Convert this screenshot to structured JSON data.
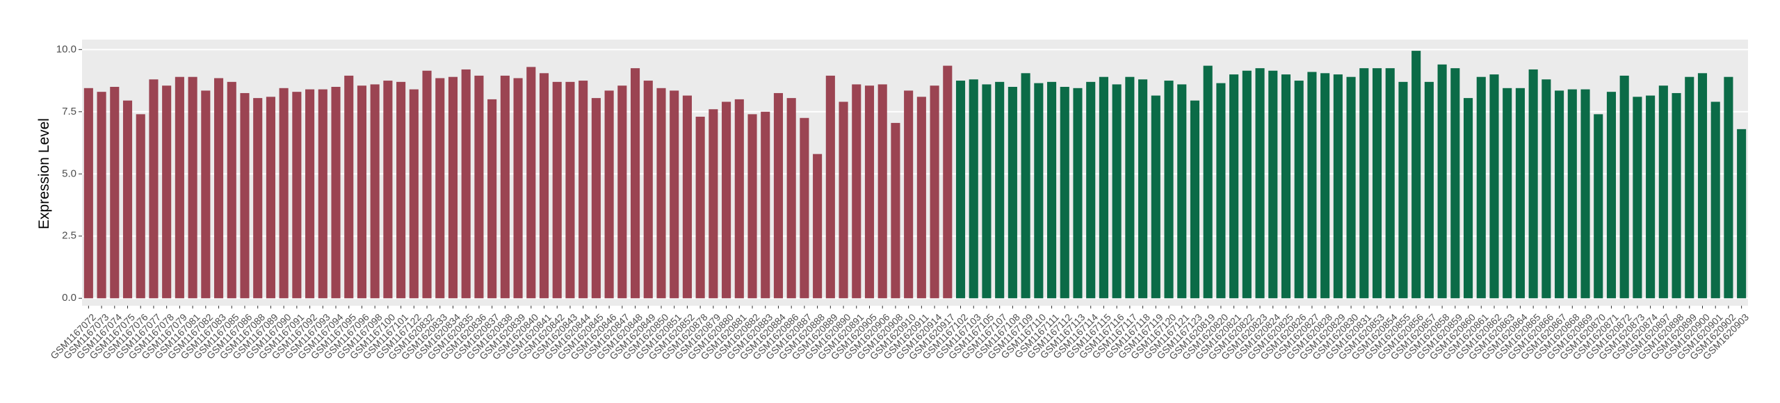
{
  "chart_data": {
    "type": "bar",
    "y_label": "Expression Level",
    "ylim": [
      -0.3,
      10.4
    ],
    "yticks": [
      {
        "value": 0,
        "label": "0.0"
      },
      {
        "value": 2.5,
        "label": "2.5"
      },
      {
        "value": 5,
        "label": "5.0"
      },
      {
        "value": 7.5,
        "label": "7.5"
      },
      {
        "value": 10,
        "label": "10.0"
      }
    ],
    "grid": true,
    "series": [
      {
        "color": "#9b4452",
        "categories": [
          "GSM1167072",
          "GSM1167073",
          "GSM1167074",
          "GSM1167075",
          "GSM1167076",
          "GSM1167077",
          "GSM1167078",
          "GSM1167079",
          "GSM1167081",
          "GSM1167082",
          "GSM1167083",
          "GSM1167085",
          "GSM1167086",
          "GSM1167088",
          "GSM1167089",
          "GSM1167090",
          "GSM1167091",
          "GSM1167092",
          "GSM1167093",
          "GSM1167094",
          "GSM1167095",
          "GSM1167096",
          "GSM1167098",
          "GSM1167100",
          "GSM1167101",
          "GSM1167122",
          "GSM1620832",
          "GSM1620833",
          "GSM1620834",
          "GSM1620835",
          "GSM1620836",
          "GSM1620837",
          "GSM1620838",
          "GSM1620839",
          "GSM1620840",
          "GSM1620841",
          "GSM1620842",
          "GSM1620843",
          "GSM1620844",
          "GSM1620845",
          "GSM1620846",
          "GSM1620847",
          "GSM1620848",
          "GSM1620849",
          "GSM1620850",
          "GSM1620851",
          "GSM1620852",
          "GSM1620878",
          "GSM1620879",
          "GSM1620880",
          "GSM1620881",
          "GSM1620882",
          "GSM1620883",
          "GSM1620884",
          "GSM1620886",
          "GSM1620887",
          "GSM1620888",
          "GSM1620889",
          "GSM1620890",
          "GSM1620891",
          "GSM1620905",
          "GSM1620906",
          "GSM1620908",
          "GSM1620910",
          "GSM1620911",
          "GSM1620914",
          "GSM1620917"
        ],
        "values": [
          8.45,
          8.3,
          8.5,
          7.95,
          7.4,
          8.8,
          8.55,
          8.9,
          8.9,
          8.35,
          8.85,
          8.7,
          8.25,
          8.05,
          8.1,
          8.45,
          8.3,
          8.4,
          8.4,
          8.5,
          8.95,
          8.55,
          8.6,
          8.75,
          8.7,
          8.4,
          9.15,
          8.85,
          8.9,
          9.2,
          8.95,
          8.0,
          8.95,
          8.85,
          9.3,
          9.05,
          8.7,
          8.7,
          8.75,
          8.05,
          8.35,
          8.55,
          9.25,
          8.75,
          8.45,
          8.35,
          8.15,
          7.3,
          7.6,
          7.9,
          8.0,
          7.4,
          7.5,
          8.25,
          8.05,
          7.25,
          5.8,
          8.95,
          7.9,
          8.6,
          8.55,
          8.6,
          7.05,
          8.35,
          8.1,
          8.55,
          9.35
        ]
      },
      {
        "color": "#0b6b47",
        "categories": [
          "GSM1167102",
          "GSM1167103",
          "GSM1167105",
          "GSM1167107",
          "GSM1167108",
          "GSM1167109",
          "GSM1167110",
          "GSM1167111",
          "GSM1167112",
          "GSM1167113",
          "GSM1167114",
          "GSM1167115",
          "GSM1167116",
          "GSM1167117",
          "GSM1167118",
          "GSM1167119",
          "GSM1167120",
          "GSM1167121",
          "GSM1167123",
          "GSM1620819",
          "GSM1620820",
          "GSM1620821",
          "GSM1620822",
          "GSM1620823",
          "GSM1620824",
          "GSM1620825",
          "GSM1620826",
          "GSM1620827",
          "GSM1620828",
          "GSM1620829",
          "GSM1620830",
          "GSM1620831",
          "GSM1620853",
          "GSM1620854",
          "GSM1620855",
          "GSM1620856",
          "GSM1620857",
          "GSM1620858",
          "GSM1620859",
          "GSM1620860",
          "GSM1620861",
          "GSM1620862",
          "GSM1620863",
          "GSM1620864",
          "GSM1620865",
          "GSM1620866",
          "GSM1620867",
          "GSM1620868",
          "GSM1620869",
          "GSM1620870",
          "GSM1620871",
          "GSM1620872",
          "GSM1620873",
          "GSM1620874",
          "GSM1620897",
          "GSM1620898",
          "GSM1620899",
          "GSM1620900",
          "GSM1620901",
          "GSM1620902",
          "GSM1620903"
        ],
        "values": [
          8.75,
          8.8,
          8.6,
          8.7,
          8.5,
          9.05,
          8.65,
          8.7,
          8.5,
          8.45,
          8.7,
          8.9,
          8.6,
          8.9,
          8.8,
          8.15,
          8.75,
          8.6,
          7.95,
          9.35,
          8.65,
          9.0,
          9.15,
          9.25,
          9.15,
          9.0,
          8.75,
          9.1,
          9.05,
          9.0,
          8.9,
          9.25,
          9.25,
          9.25,
          8.7,
          9.95,
          8.7,
          9.4,
          9.25,
          8.05,
          8.9,
          9.0,
          8.45,
          8.45,
          9.2,
          8.8,
          8.35,
          8.4,
          8.4,
          7.4,
          8.3,
          8.95,
          8.1,
          8.15,
          8.55,
          8.25,
          8.9,
          9.05,
          7.9,
          8.9,
          6.8
        ]
      }
    ]
  }
}
